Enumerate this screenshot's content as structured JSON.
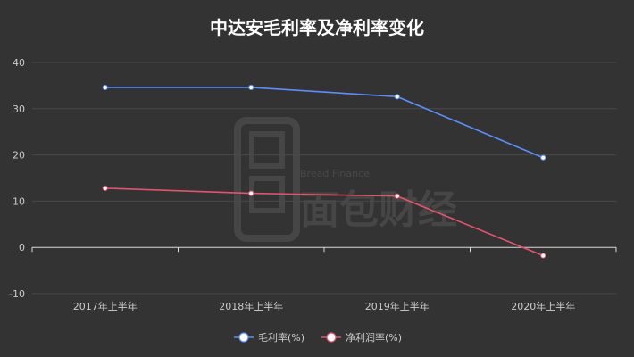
{
  "chart_data": {
    "type": "line",
    "title": "中达安毛利率及净利率变化",
    "categories": [
      "2017年上半年",
      "2018年上半年",
      "2019年上半年",
      "2020年上半年"
    ],
    "series": [
      {
        "name": "毛利率(%)",
        "values": [
          34.6,
          34.6,
          32.6,
          19.4
        ],
        "color": "#5b8ff9"
      },
      {
        "name": "净利润率(%)",
        "values": [
          12.8,
          11.7,
          11.1,
          -1.8
        ],
        "color": "#e0546e"
      }
    ],
    "yticks": [
      -10,
      0,
      10,
      20,
      30,
      40
    ],
    "ylim": [
      -10,
      40
    ],
    "grid": true,
    "legend_position": "bottom-center",
    "watermark": {
      "text_en": "Bread Finance",
      "text_cn": "面包财经"
    },
    "colors": {
      "background": "#333333",
      "grid": "#4a4a4a",
      "axis": "#d9d9d9",
      "label": "#cccccc",
      "title": "#ffffff"
    }
  }
}
